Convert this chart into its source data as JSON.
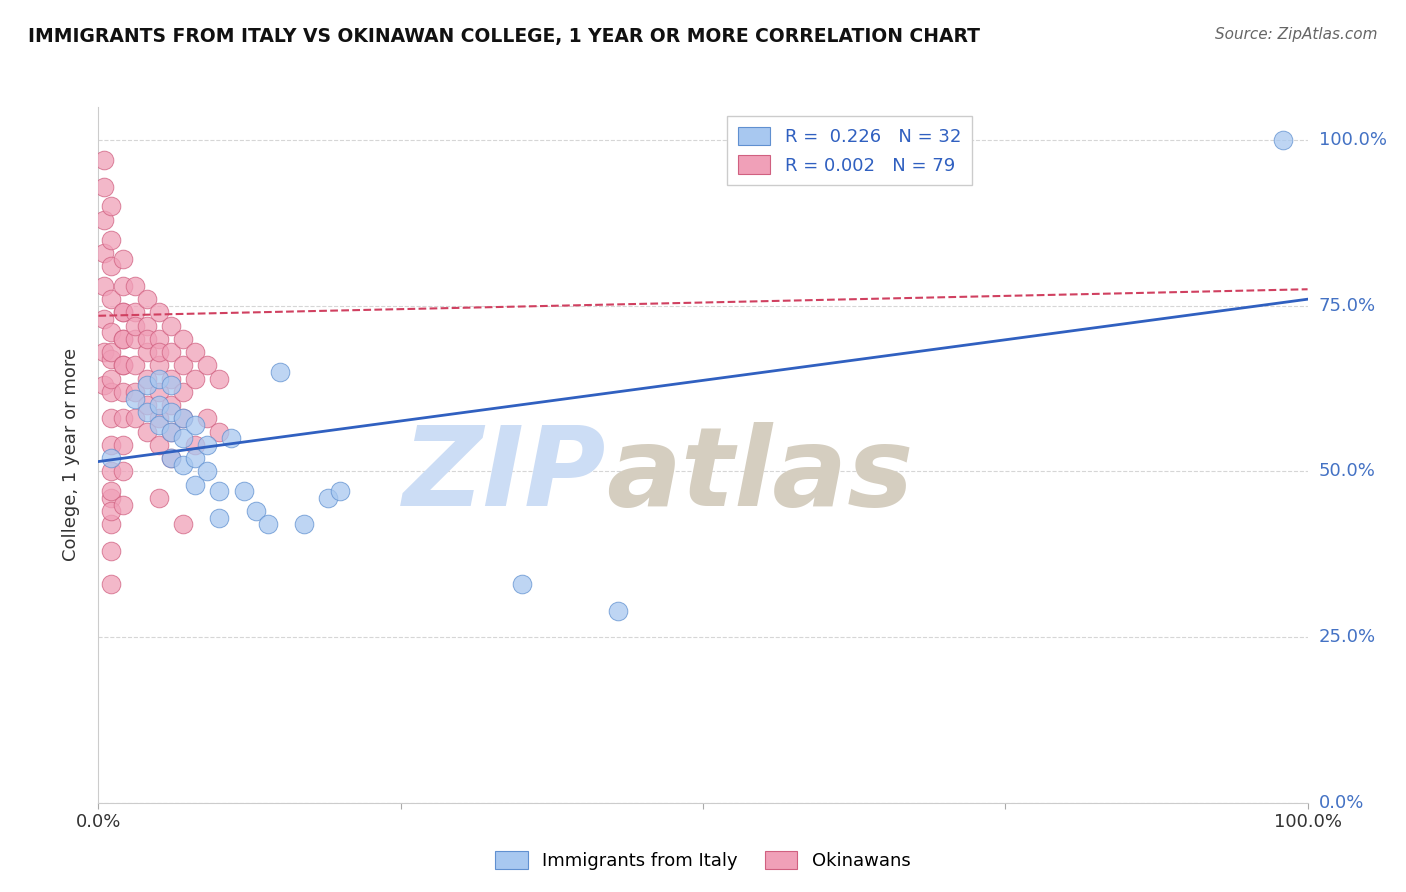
{
  "title": "IMMIGRANTS FROM ITALY VS OKINAWAN COLLEGE, 1 YEAR OR MORE CORRELATION CHART",
  "source_text": "Source: ZipAtlas.com",
  "ylabel": "College, 1 year or more",
  "xlim": [
    0.0,
    1.0
  ],
  "ylim": [
    0.0,
    1.05
  ],
  "x_tick_labels": [
    "0.0%",
    "100.0%"
  ],
  "y_tick_labels": [
    "0.0%",
    "25.0%",
    "50.0%",
    "75.0%",
    "100.0%"
  ],
  "y_tick_positions": [
    0.0,
    0.25,
    0.5,
    0.75,
    1.0
  ],
  "legend_blue_text": "R =  0.226   N = 32",
  "legend_pink_text": "R = 0.002   N = 79",
  "blue_scatter_x": [
    0.01,
    0.03,
    0.04,
    0.04,
    0.05,
    0.05,
    0.05,
    0.06,
    0.06,
    0.06,
    0.06,
    0.07,
    0.07,
    0.07,
    0.08,
    0.08,
    0.08,
    0.09,
    0.09,
    0.1,
    0.1,
    0.11,
    0.12,
    0.13,
    0.14,
    0.15,
    0.17,
    0.19,
    0.2,
    0.35,
    0.43,
    0.98
  ],
  "blue_scatter_y": [
    0.52,
    0.61,
    0.63,
    0.59,
    0.64,
    0.6,
    0.57,
    0.63,
    0.59,
    0.56,
    0.52,
    0.58,
    0.55,
    0.51,
    0.57,
    0.52,
    0.48,
    0.54,
    0.5,
    0.47,
    0.43,
    0.55,
    0.47,
    0.44,
    0.42,
    0.65,
    0.42,
    0.46,
    0.47,
    0.33,
    0.29,
    1.0
  ],
  "pink_scatter_x": [
    0.005,
    0.005,
    0.005,
    0.005,
    0.005,
    0.005,
    0.005,
    0.005,
    0.01,
    0.01,
    0.01,
    0.01,
    0.01,
    0.01,
    0.01,
    0.01,
    0.01,
    0.01,
    0.01,
    0.01,
    0.01,
    0.01,
    0.01,
    0.01,
    0.01,
    0.01,
    0.02,
    0.02,
    0.02,
    0.02,
    0.02,
    0.02,
    0.02,
    0.02,
    0.02,
    0.02,
    0.02,
    0.02,
    0.02,
    0.03,
    0.03,
    0.03,
    0.03,
    0.03,
    0.03,
    0.03,
    0.04,
    0.04,
    0.04,
    0.04,
    0.04,
    0.04,
    0.04,
    0.05,
    0.05,
    0.05,
    0.05,
    0.05,
    0.05,
    0.05,
    0.05,
    0.06,
    0.06,
    0.06,
    0.06,
    0.06,
    0.06,
    0.07,
    0.07,
    0.07,
    0.07,
    0.07,
    0.08,
    0.08,
    0.08,
    0.09,
    0.09,
    0.1,
    0.1
  ],
  "pink_scatter_y": [
    0.97,
    0.93,
    0.88,
    0.83,
    0.78,
    0.73,
    0.68,
    0.63,
    0.9,
    0.85,
    0.81,
    0.76,
    0.71,
    0.67,
    0.62,
    0.58,
    0.54,
    0.5,
    0.46,
    0.42,
    0.38,
    0.33,
    0.47,
    0.44,
    0.68,
    0.64,
    0.82,
    0.78,
    0.74,
    0.7,
    0.66,
    0.62,
    0.58,
    0.54,
    0.5,
    0.45,
    0.74,
    0.7,
    0.66,
    0.78,
    0.74,
    0.7,
    0.66,
    0.62,
    0.58,
    0.72,
    0.76,
    0.72,
    0.68,
    0.64,
    0.6,
    0.56,
    0.7,
    0.74,
    0.7,
    0.66,
    0.62,
    0.58,
    0.54,
    0.68,
    0.46,
    0.72,
    0.68,
    0.64,
    0.6,
    0.56,
    0.52,
    0.7,
    0.66,
    0.62,
    0.58,
    0.42,
    0.68,
    0.64,
    0.54,
    0.66,
    0.58,
    0.64,
    0.56
  ],
  "blue_line_x": [
    0.0,
    1.0
  ],
  "blue_line_y": [
    0.515,
    0.76
  ],
  "pink_line_x": [
    0.0,
    1.0
  ],
  "pink_line_y": [
    0.735,
    0.775
  ],
  "blue_color": "#a8c8f0",
  "pink_color": "#f0a0b8",
  "blue_edge_color": "#6090d0",
  "pink_edge_color": "#d06080",
  "blue_line_color": "#3060c0",
  "pink_line_color": "#d04060",
  "grid_color": "#cccccc",
  "background_color": "#ffffff",
  "title_color": "#111111",
  "source_color": "#666666",
  "right_label_color": "#4472c4"
}
